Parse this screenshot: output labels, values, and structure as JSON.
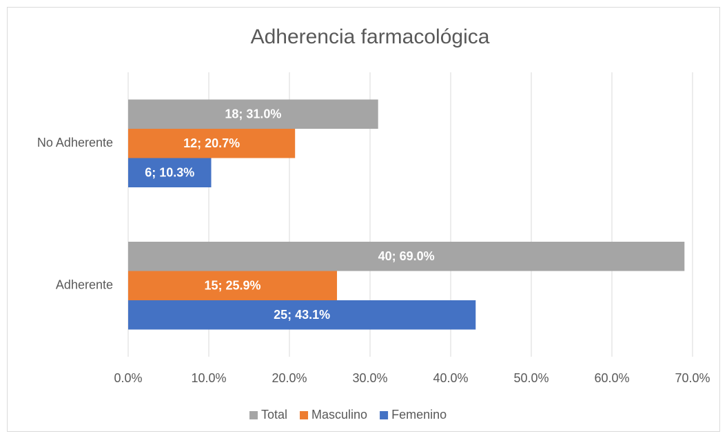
{
  "chart_data": {
    "type": "barh",
    "title": "Adherencia farmacológica",
    "categories": [
      "No Adherente",
      "Adherente"
    ],
    "series": [
      {
        "name": "Total",
        "color": "#a5a5a5",
        "values": [
          31.0,
          69.0
        ],
        "value_labels": [
          "18; 31.0%",
          "40; 69.0%"
        ]
      },
      {
        "name": "Masculino",
        "color": "#ed7d31",
        "values": [
          20.7,
          25.9
        ],
        "value_labels": [
          "12; 20.7%",
          "15; 25.9%"
        ]
      },
      {
        "name": "Femenino",
        "color": "#4472c4",
        "values": [
          10.3,
          43.1
        ],
        "value_labels": [
          "6; 10.3%",
          "25; 43.1%"
        ]
      }
    ],
    "xlim": [
      0,
      70
    ],
    "xticks": [
      {
        "value": 0,
        "label": "0.0%"
      },
      {
        "value": 10,
        "label": "10.0%"
      },
      {
        "value": 20,
        "label": "20.0%"
      },
      {
        "value": 30,
        "label": "30.0%"
      },
      {
        "value": 40,
        "label": "40.0%"
      },
      {
        "value": 50,
        "label": "50.0%"
      },
      {
        "value": 60,
        "label": "60.0%"
      },
      {
        "value": 70,
        "label": "70.0%"
      }
    ],
    "grid": true,
    "legend": "bottom"
  }
}
